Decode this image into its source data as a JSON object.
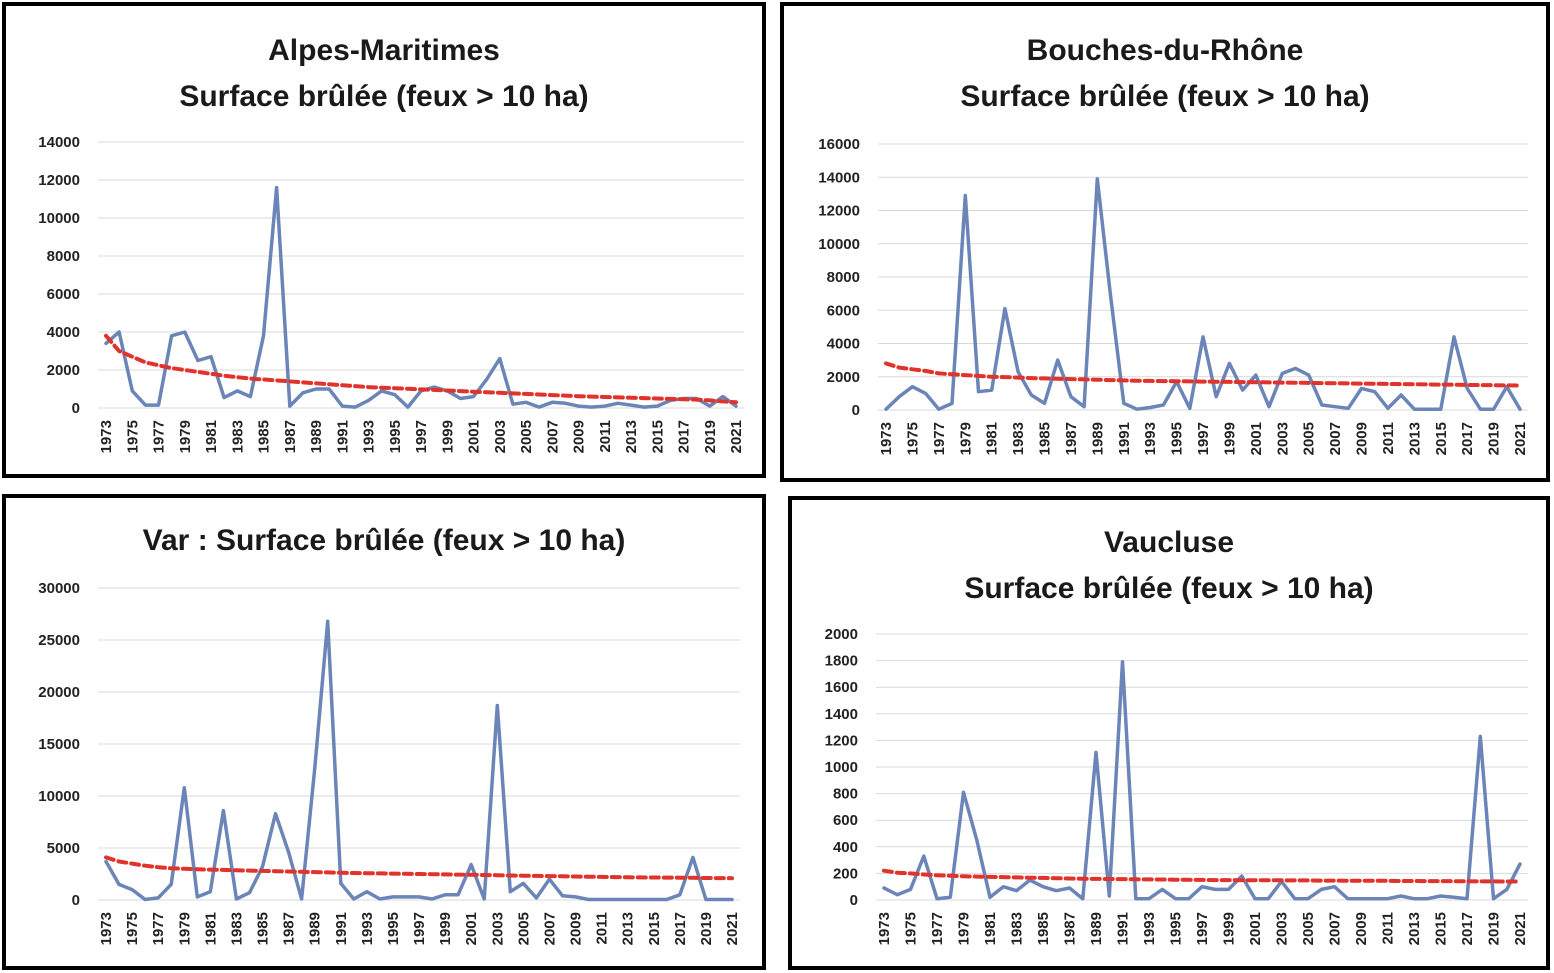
{
  "chart_data": [
    {
      "type": "line",
      "title_line1": "Alpes-Maritimes",
      "title_line2": "Surface brûlée (feux > 10 ha)",
      "ylim": [
        0,
        14000
      ],
      "yticks": [
        0,
        2000,
        4000,
        6000,
        8000,
        10000,
        12000,
        14000
      ],
      "x_tick_labels": [
        "1973",
        "1975",
        "1977",
        "1979",
        "1981",
        "1983",
        "1985",
        "1987",
        "1989",
        "1991",
        "1993",
        "1995",
        "1997",
        "1999",
        "2001",
        "2003",
        "2005",
        "2007",
        "2009",
        "2011",
        "2013",
        "2015",
        "2017",
        "2019",
        "2021"
      ],
      "x": [
        1973,
        1974,
        1975,
        1976,
        1977,
        1978,
        1979,
        1980,
        1981,
        1982,
        1983,
        1984,
        1985,
        1986,
        1987,
        1988,
        1989,
        1990,
        1991,
        1992,
        1993,
        1994,
        1995,
        1996,
        1997,
        1998,
        1999,
        2000,
        2001,
        2002,
        2003,
        2004,
        2005,
        2006,
        2007,
        2008,
        2009,
        2010,
        2011,
        2012,
        2013,
        2014,
        2015,
        2016,
        2017,
        2018,
        2019,
        2020,
        2021
      ],
      "series": [
        {
          "values": [
            3400,
            4000,
            900,
            150,
            150,
            3800,
            4000,
            2500,
            2700,
            550,
            900,
            600,
            3800,
            11600,
            100,
            800,
            1000,
            1000,
            100,
            50,
            400,
            900,
            700,
            50,
            900,
            1100,
            900,
            500,
            600,
            1500,
            2600,
            200,
            300,
            50,
            300,
            250,
            100,
            50,
            100,
            250,
            150,
            50,
            100,
            400,
            500,
            500,
            100,
            600,
            100
          ]
        },
        {
          "values": [
            3800,
            3000,
            2700,
            2400,
            2250,
            2100,
            2000,
            1900,
            1800,
            1700,
            1620,
            1550,
            1500,
            1450,
            1400,
            1350,
            1300,
            1250,
            1200,
            1150,
            1100,
            1070,
            1040,
            1010,
            980,
            950,
            920,
            890,
            860,
            830,
            800,
            770,
            740,
            710,
            680,
            650,
            620,
            600,
            580,
            560,
            540,
            520,
            500,
            480,
            460,
            440,
            400,
            350,
            300
          ]
        }
      ],
      "colors": [
        "#6b85b8",
        "#e0332b"
      ],
      "grid": true
    },
    {
      "type": "line",
      "title_line1": "Bouches-du-Rhône",
      "title_line2": "Surface brûlée (feux > 10 ha)",
      "ylim": [
        0,
        16000
      ],
      "yticks": [
        0,
        2000,
        4000,
        6000,
        8000,
        10000,
        12000,
        14000,
        16000
      ],
      "x_tick_labels": [
        "1973",
        "1975",
        "1977",
        "1979",
        "1981",
        "1983",
        "1985",
        "1987",
        "1989",
        "1991",
        "1993",
        "1995",
        "1997",
        "1999",
        "2001",
        "2003",
        "2005",
        "2007",
        "2009",
        "2011",
        "2013",
        "2015",
        "2017",
        "2019",
        "2021"
      ],
      "x": [
        1973,
        1974,
        1975,
        1976,
        1977,
        1978,
        1979,
        1980,
        1981,
        1982,
        1983,
        1984,
        1985,
        1986,
        1987,
        1988,
        1989,
        1990,
        1991,
        1992,
        1993,
        1994,
        1995,
        1996,
        1997,
        1998,
        1999,
        2000,
        2001,
        2002,
        2003,
        2004,
        2005,
        2006,
        2007,
        2008,
        2009,
        2010,
        2011,
        2012,
        2013,
        2014,
        2015,
        2016,
        2017,
        2018,
        2019,
        2020,
        2021
      ],
      "series": [
        {
          "values": [
            50,
            800,
            1400,
            1000,
            50,
            400,
            12900,
            1100,
            1200,
            6100,
            2300,
            900,
            400,
            3000,
            800,
            200,
            13900,
            6900,
            400,
            50,
            150,
            300,
            1700,
            100,
            4400,
            800,
            2800,
            1200,
            2100,
            200,
            2200,
            2500,
            2100,
            300,
            200,
            100,
            1300,
            1100,
            100,
            900,
            50,
            50,
            50,
            4400,
            1300,
            50,
            50,
            1400,
            50
          ]
        },
        {
          "values": [
            2800,
            2550,
            2450,
            2350,
            2200,
            2150,
            2100,
            2050,
            2000,
            1980,
            1950,
            1920,
            1900,
            1880,
            1860,
            1840,
            1820,
            1800,
            1780,
            1760,
            1750,
            1740,
            1730,
            1720,
            1710,
            1700,
            1690,
            1680,
            1670,
            1660,
            1650,
            1640,
            1630,
            1620,
            1610,
            1600,
            1590,
            1580,
            1570,
            1560,
            1550,
            1540,
            1530,
            1520,
            1510,
            1500,
            1490,
            1480,
            1470
          ]
        }
      ],
      "colors": [
        "#6b85b8",
        "#e0332b"
      ],
      "grid": true
    },
    {
      "type": "line",
      "title_line1": "Var : Surface brûlée (feux > 10 ha)",
      "title_line2": "",
      "ylim": [
        0,
        30000
      ],
      "yticks": [
        0,
        5000,
        10000,
        15000,
        20000,
        25000,
        30000
      ],
      "x_tick_labels": [
        "1973",
        "1975",
        "1977",
        "1979",
        "1981",
        "1983",
        "1985",
        "1987",
        "1989",
        "1991",
        "1993",
        "1995",
        "1997",
        "1999",
        "2001",
        "2003",
        "2005",
        "2007",
        "2009",
        "2011",
        "2013",
        "2015",
        "2017",
        "2019",
        "2021"
      ],
      "x": [
        1973,
        1974,
        1975,
        1976,
        1977,
        1978,
        1979,
        1980,
        1981,
        1982,
        1983,
        1984,
        1985,
        1986,
        1987,
        1988,
        1989,
        1990,
        1991,
        1992,
        1993,
        1994,
        1995,
        1996,
        1997,
        1998,
        1999,
        2000,
        2001,
        2002,
        2003,
        2004,
        2005,
        2006,
        2007,
        2008,
        2009,
        2010,
        2011,
        2012,
        2013,
        2014,
        2015,
        2016,
        2017,
        2018,
        2019,
        2020,
        2021
      ],
      "series": [
        {
          "values": [
            3700,
            1500,
            1000,
            50,
            200,
            1500,
            10800,
            300,
            800,
            8600,
            100,
            700,
            3200,
            8300,
            4600,
            100,
            12600,
            26800,
            1600,
            100,
            800,
            100,
            300,
            300,
            300,
            100,
            500,
            500,
            3400,
            100,
            18700,
            800,
            1600,
            200,
            2000,
            400,
            300,
            50,
            50,
            50,
            50,
            50,
            50,
            50,
            500,
            4100,
            50,
            50,
            50
          ]
        },
        {
          "values": [
            4100,
            3700,
            3500,
            3300,
            3150,
            3050,
            3000,
            2950,
            2920,
            2890,
            2860,
            2830,
            2800,
            2770,
            2740,
            2710,
            2680,
            2650,
            2620,
            2600,
            2580,
            2560,
            2540,
            2520,
            2500,
            2480,
            2460,
            2440,
            2420,
            2400,
            2380,
            2360,
            2340,
            2320,
            2300,
            2280,
            2260,
            2240,
            2220,
            2200,
            2180,
            2170,
            2160,
            2150,
            2140,
            2130,
            2120,
            2110,
            2100
          ]
        }
      ],
      "colors": [
        "#6b85b8",
        "#e0332b"
      ],
      "grid": true
    },
    {
      "type": "line",
      "title_line1": "Vaucluse",
      "title_line2": "Surface brûlée (feux > 10 ha)",
      "ylim": [
        0,
        2000
      ],
      "yticks": [
        0,
        200,
        400,
        600,
        800,
        1000,
        1200,
        1400,
        1600,
        1800,
        2000
      ],
      "x_tick_labels": [
        "1973",
        "1975",
        "1977",
        "1979",
        "1981",
        "1983",
        "1985",
        "1987",
        "1989",
        "1991",
        "1993",
        "1995",
        "1997",
        "1999",
        "2001",
        "2003",
        "2005",
        "2007",
        "2009",
        "2011",
        "2013",
        "2015",
        "2017",
        "2019",
        "2021"
      ],
      "x": [
        1973,
        1974,
        1975,
        1976,
        1977,
        1978,
        1979,
        1980,
        1981,
        1982,
        1983,
        1984,
        1985,
        1986,
        1987,
        1988,
        1989,
        1990,
        1991,
        1992,
        1993,
        1994,
        1995,
        1996,
        1997,
        1998,
        1999,
        2000,
        2001,
        2002,
        2003,
        2004,
        2005,
        2006,
        2007,
        2008,
        2009,
        2010,
        2011,
        2012,
        2013,
        2014,
        2015,
        2016,
        2017,
        2018,
        2019,
        2020,
        2021
      ],
      "series": [
        {
          "values": [
            90,
            40,
            80,
            330,
            10,
            20,
            810,
            450,
            20,
            100,
            70,
            150,
            100,
            70,
            90,
            10,
            1110,
            30,
            1790,
            10,
            10,
            80,
            10,
            10,
            100,
            80,
            80,
            180,
            10,
            10,
            140,
            10,
            10,
            80,
            100,
            10,
            10,
            10,
            10,
            30,
            10,
            10,
            30,
            20,
            10,
            1230,
            10,
            80,
            270
          ]
        },
        {
          "values": [
            220,
            205,
            200,
            192,
            186,
            182,
            178,
            176,
            174,
            172,
            170,
            168,
            166,
            164,
            162,
            160,
            159,
            158,
            157,
            156,
            155,
            154,
            153,
            152,
            151,
            150,
            150,
            149,
            149,
            148,
            148,
            147,
            147,
            146,
            146,
            145,
            145,
            144,
            144,
            143,
            143,
            142,
            142,
            141,
            141,
            140,
            140,
            139,
            139
          ]
        }
      ],
      "colors": [
        "#6b85b8",
        "#e0332b"
      ],
      "grid": true
    }
  ]
}
